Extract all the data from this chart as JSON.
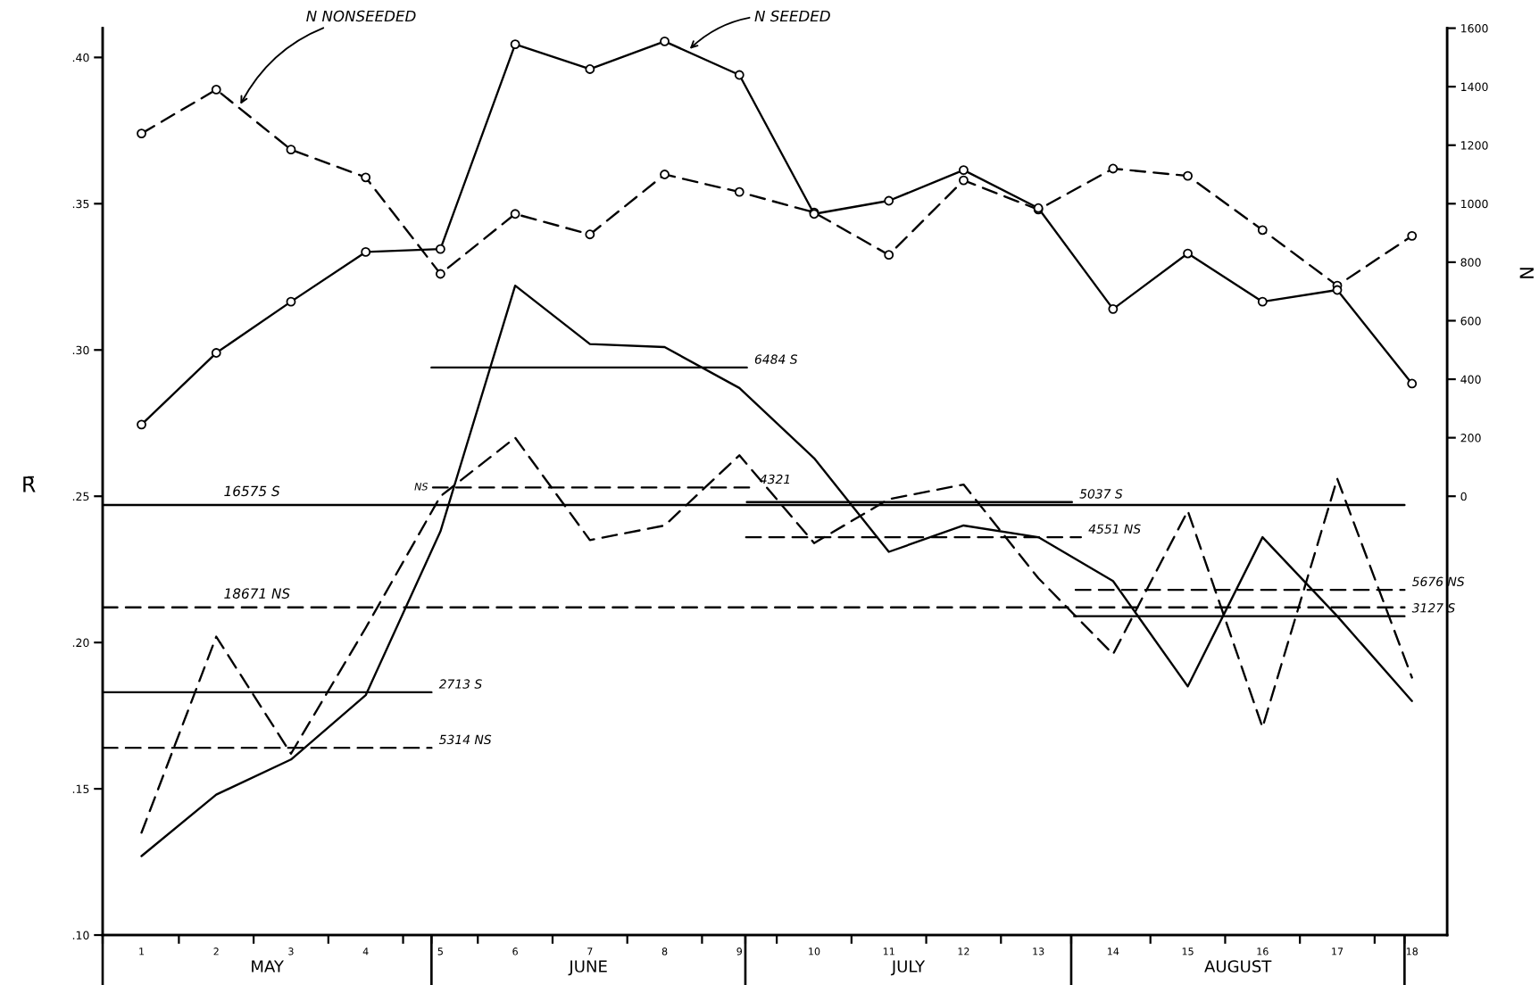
{
  "chart_data": {
    "type": "line",
    "x": [
      1,
      2,
      3,
      4,
      5,
      6,
      7,
      8,
      9,
      10,
      11,
      12,
      13,
      14,
      15,
      16,
      17,
      18
    ],
    "xlim": [
      0.48,
      18.47
    ],
    "xticks": [
      {
        "value": 0.48,
        "label": null
      },
      1,
      {
        "value": 1.5,
        "label": null
      },
      2,
      {
        "value": 2.5,
        "label": null
      },
      3,
      {
        "value": 3.5,
        "label": null
      },
      4,
      {
        "value": 4.5,
        "label": null
      },
      {
        "value": 4.88,
        "label": null
      },
      5,
      {
        "value": 5.5,
        "label": null
      },
      6,
      {
        "value": 6.5,
        "label": null
      },
      7,
      {
        "value": 7.5,
        "label": null
      },
      8,
      {
        "value": 8.5,
        "label": null
      },
      9,
      {
        "value": 9.08,
        "label": null
      },
      {
        "value": 9.5,
        "label": null
      },
      10,
      {
        "value": 10.5,
        "label": null
      },
      11,
      {
        "value": 11.5,
        "label": null
      },
      12,
      {
        "value": 12.5,
        "label": null
      },
      13,
      {
        "value": 13.44,
        "label": null
      },
      14,
      {
        "value": 14.5,
        "label": null
      },
      15,
      {
        "value": 15.5,
        "label": null
      },
      16,
      {
        "value": 16.5,
        "label": null
      },
      17,
      {
        "value": 17.5,
        "label": null
      },
      {
        "value": 17.9,
        "label": null
      },
      18
    ],
    "ylim": [
      0.1,
      0.41
    ],
    "yticks": [
      {
        "value": 0.1,
        "label": ".10"
      },
      {
        "value": 0.15,
        "label": ".15"
      },
      {
        "value": 0.2,
        "label": ".20"
      },
      {
        "value": 0.25,
        "label": ".25"
      },
      {
        "value": 0.3,
        "label": ".30"
      },
      {
        "value": 0.35,
        "label": ".35"
      },
      {
        "value": 0.4,
        "label": ".40"
      }
    ],
    "y2lim": [
      -1500,
      1600
    ],
    "y2ticks": [
      0,
      200,
      400,
      600,
      800,
      1000,
      1200,
      1400,
      1600
    ],
    "ylabel": "R̄",
    "y2label": "N",
    "series": [
      {
        "name": "N NONSEEDED",
        "axis": "y2",
        "color": "#000000",
        "line_style": "dashed",
        "marker": "circle",
        "values": [
          1240,
          1390,
          1185,
          1090,
          760,
          965,
          895,
          1100,
          1040,
          970,
          825,
          1080,
          980,
          1120,
          1095,
          910,
          720,
          890
        ]
      },
      {
        "name": "N SEEDED",
        "axis": "y2",
        "color": "#000000",
        "line_style": "solid",
        "marker": "circle",
        "values": [
          245,
          490,
          665,
          835,
          845,
          1545,
          1460,
          1555,
          1440,
          965,
          1010,
          1115,
          985,
          640,
          830,
          665,
          705,
          385
        ]
      },
      {
        "color": "#000000",
        "line_style": "solid",
        "marker": "none",
        "values": [
          0.127,
          0.148,
          0.16,
          0.182,
          0.238,
          0.322,
          0.302,
          0.301,
          0.287,
          0.263,
          0.231,
          0.24,
          0.236,
          0.221,
          0.185,
          0.236,
          0.209,
          0.18
        ]
      },
      {
        "color": "#000000",
        "line_style": "dashed",
        "marker": "none",
        "values": [
          0.135,
          0.202,
          0.162,
          0.205,
          0.25,
          0.27,
          0.235,
          0.24,
          0.264,
          0.234,
          0.249,
          0.254,
          0.222,
          0.196,
          0.245,
          0.171,
          0.256,
          0.188
        ]
      },
      {
        "name": "16575 S",
        "color": "#000000",
        "line_style": "solid",
        "marker": "none",
        "x": [
          0.48,
          17.9
        ],
        "values": [
          0.247,
          0.247
        ]
      },
      {
        "name": "18671 NS",
        "color": "#000000",
        "line_style": "dashed",
        "marker": "none",
        "x": [
          0.48,
          17.9
        ],
        "values": [
          0.212,
          0.212
        ]
      },
      {
        "name": "2713 S",
        "color": "#000000",
        "line_style": "solid",
        "marker": "none",
        "x": [
          0.48,
          4.88
        ],
        "values": [
          0.183,
          0.183
        ]
      },
      {
        "name": "5314 NS",
        "color": "#000000",
        "line_style": "dashed",
        "marker": "none",
        "x": [
          0.48,
          4.88
        ],
        "values": [
          0.164,
          0.164
        ]
      },
      {
        "name": "6484 S",
        "color": "#000000",
        "line_style": "solid",
        "marker": "none",
        "x": [
          4.88,
          9.1
        ],
        "values": [
          0.294,
          0.294
        ]
      },
      {
        "name": "4321",
        "color": "#000000",
        "line_style": "dashed",
        "marker": "none",
        "x": [
          4.9,
          9.17
        ],
        "values": [
          0.253,
          0.253
        ]
      },
      {
        "name": "5037 S",
        "color": "#000000",
        "line_style": "solid",
        "marker": "none",
        "x": [
          9.1,
          13.45
        ],
        "values": [
          0.248,
          0.248
        ]
      },
      {
        "name": "4551 NS",
        "color": "#000000",
        "line_style": "dashed",
        "marker": "none",
        "x": [
          9.09,
          13.57
        ],
        "values": [
          0.236,
          0.236
        ]
      },
      {
        "name": "5676 NS",
        "color": "#000000",
        "line_style": "dashed",
        "marker": "none",
        "x": [
          13.5,
          17.9
        ],
        "values": [
          0.218,
          0.218
        ]
      },
      {
        "name": "3127 S",
        "color": "#000000",
        "line_style": "solid",
        "marker": "none",
        "x": [
          13.48,
          17.9
        ],
        "values": [
          0.209,
          0.209
        ]
      }
    ],
    "annotations": [
      {
        "text": "NS",
        "x": 4.9,
        "y": 0.253
      },
      "MAY",
      "JUNE",
      "JULY",
      "AUGUST"
    ]
  }
}
